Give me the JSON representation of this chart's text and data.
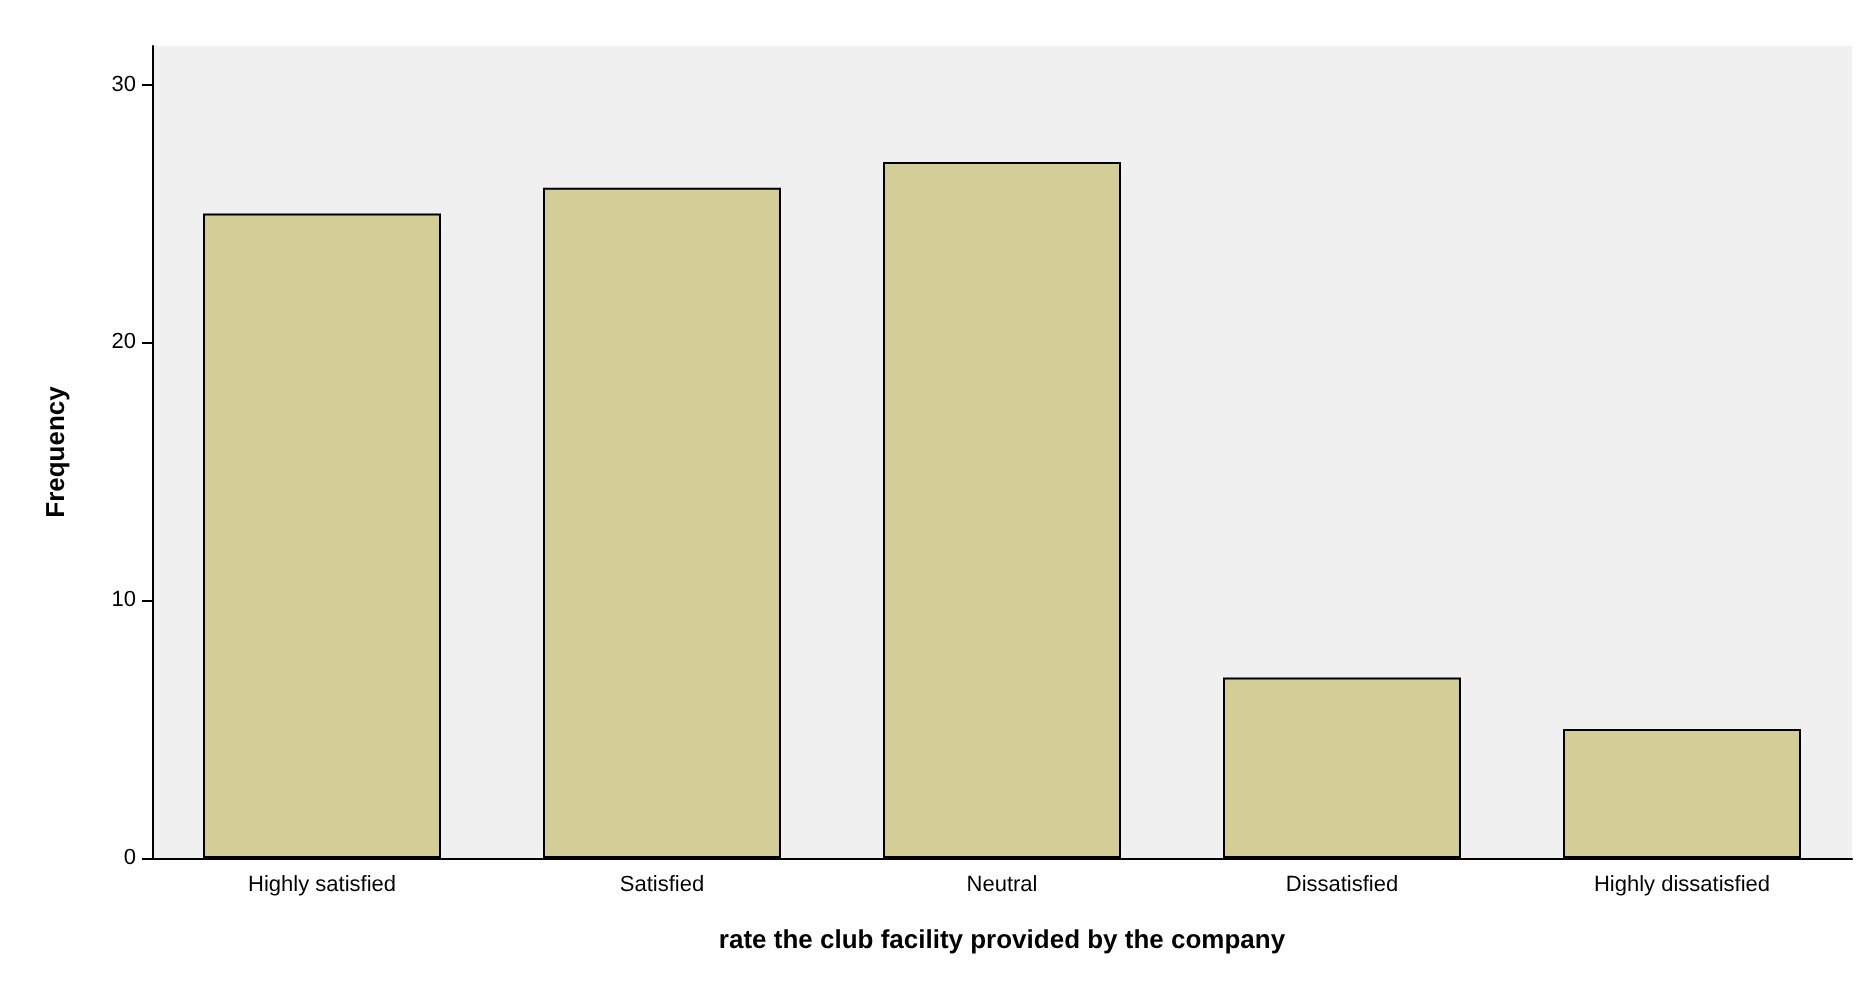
{
  "chart_data": {
    "type": "bar",
    "xlabel": "rate the club facility provided by the company",
    "ylabel": "Frequency",
    "categories": [
      "Highly satisfied",
      "Satisfied",
      "Neutral",
      "Dissatisfied",
      "Highly dissatisfied"
    ],
    "values": [
      25,
      26,
      27,
      7,
      5
    ],
    "color": "#d3ce97",
    "ylim": [
      0,
      31.5
    ],
    "yticks": [
      0,
      10,
      20,
      30
    ],
    "grid": false
  }
}
